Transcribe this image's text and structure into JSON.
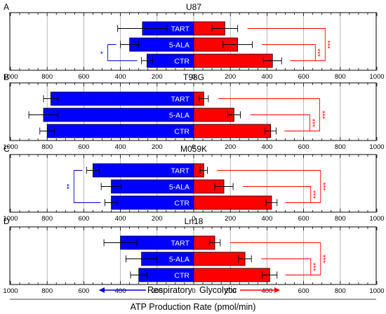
{
  "chart_data": {
    "type": "bar",
    "orientation": "horizontal",
    "xlim": [
      -1000,
      1000
    ],
    "x_ticks": [
      -1000,
      -800,
      -600,
      -400,
      -200,
      0,
      200,
      400,
      600,
      800,
      1000
    ],
    "x_tick_labels": [
      "1000",
      "800",
      "600",
      "400",
      "200",
      "0",
      "200",
      "400",
      "600",
      "800",
      "1000"
    ],
    "grid": "vertical lines at major ticks",
    "categories": [
      "TART",
      "5-ALA",
      "CTR"
    ],
    "series_colors": {
      "respiratory": "#0000ff",
      "glycolytic": "#ff0000"
    },
    "xlabel": "ATP Production Rate (pmol/min)",
    "direction_labels": {
      "left": "Respiratory",
      "right": "Glycolytic"
    },
    "panels": [
      {
        "letter": "A",
        "title": "U87",
        "respiratory": [
          280,
          350,
          255
        ],
        "respiratory_err": [
          135,
          50,
          30
        ],
        "glycolytic": [
          170,
          240,
          430
        ],
        "glycolytic_err": [
          70,
          80,
          50
        ],
        "respiratory_sig": [
          {
            "between": [
              "5-ALA",
              "CTR"
            ],
            "label": "*"
          }
        ],
        "glycolytic_sig": [
          {
            "between": [
              "TART",
              "CTR"
            ],
            "label": "***"
          },
          {
            "between": [
              "5-ALA",
              "CTR"
            ],
            "label": "***"
          }
        ]
      },
      {
        "letter": "B",
        "title": "T98G",
        "respiratory": [
          780,
          820,
          800
        ],
        "respiratory_err": [
          40,
          80,
          40
        ],
        "glycolytic": [
          55,
          220,
          420
        ],
        "glycolytic_err": [
          25,
          35,
          30
        ],
        "respiratory_sig": [],
        "glycolytic_sig": [
          {
            "between": [
              "TART",
              "CTR"
            ],
            "label": "***"
          },
          {
            "between": [
              "5-ALA",
              "CTR"
            ],
            "label": "***"
          }
        ]
      },
      {
        "letter": "C",
        "title": "M059K",
        "respiratory": [
          550,
          450,
          450
        ],
        "respiratory_err": [
          35,
          55,
          35
        ],
        "glycolytic": [
          55,
          165,
          425
        ],
        "glycolytic_err": [
          20,
          50,
          30
        ],
        "respiratory_sig": [
          {
            "between": [
              "TART",
              "CTR"
            ],
            "label": "**"
          }
        ],
        "glycolytic_sig": [
          {
            "between": [
              "TART",
              "CTR"
            ],
            "label": "***"
          },
          {
            "between": [
              "5-ALA",
              "CTR"
            ],
            "label": "***"
          }
        ]
      },
      {
        "letter": "D",
        "title": "Ln18",
        "respiratory": [
          400,
          285,
          300
        ],
        "respiratory_err": [
          90,
          85,
          45
        ],
        "glycolytic": [
          115,
          280,
          415
        ],
        "glycolytic_err": [
          30,
          35,
          40
        ],
        "respiratory_sig": [],
        "glycolytic_sig": [
          {
            "between": [
              "TART",
              "CTR"
            ],
            "label": "***"
          },
          {
            "between": [
              "5-ALA",
              "CTR"
            ],
            "label": "***"
          }
        ]
      }
    ]
  }
}
